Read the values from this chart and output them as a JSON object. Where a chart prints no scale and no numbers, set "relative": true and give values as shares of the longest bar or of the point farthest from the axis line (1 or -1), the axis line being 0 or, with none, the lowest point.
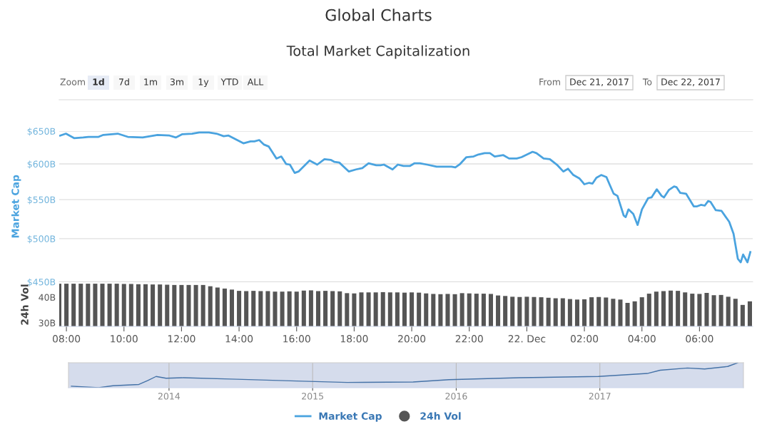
{
  "chart_data": [
    {
      "type": "line",
      "title": "Global Charts",
      "subtitle": "Total Market Capitalization",
      "annotations": [
        "Zoom",
        "1d",
        "7d",
        "1m",
        "3m",
        "1y",
        "YTD",
        "ALL",
        "From",
        "Dec 21, 2017",
        "To",
        "Dec 22, 2017"
      ],
      "ylabel": "Market Cap",
      "log": "y",
      "ylim": [
        450,
        650
      ],
      "yticks": [
        {
          "value": 450,
          "label": "$450B"
        },
        {
          "value": 500,
          "label": "$500B"
        },
        {
          "value": 550,
          "label": "$550B"
        },
        {
          "value": 600,
          "label": "$600B"
        },
        {
          "value": 650,
          "label": "$650B"
        }
      ],
      "xlim": [
        "2017-12-21T07:45",
        "2017-12-22T07:51"
      ],
      "tick_labels": "y",
      "grid": "y",
      "legend": "bottom",
      "x": [
        "2017-12-21T07:47",
        "2017-12-21T07:59",
        "2017-12-21T08:16",
        "2017-12-21T08:35",
        "2017-12-21T08:46",
        "2017-12-21T09:07",
        "2017-12-21T09:17",
        "2017-12-21T09:47",
        "2017-12-21T10:08",
        "2017-12-21T10:39",
        "2017-12-21T11:10",
        "2017-12-21T11:35",
        "2017-12-21T11:48",
        "2017-12-21T12:01",
        "2017-12-21T12:22",
        "2017-12-21T12:37",
        "2017-12-21T12:57",
        "2017-12-21T13:13",
        "2017-12-21T13:28",
        "2017-12-21T13:38",
        "2017-12-21T14:09",
        "2017-12-21T14:24",
        "2017-12-21T14:32",
        "2017-12-21T14:42",
        "2017-12-21T14:52",
        "2017-12-21T15:02",
        "2017-12-21T15:18",
        "2017-12-21T15:28",
        "2017-12-21T15:38",
        "2017-12-21T15:46",
        "2017-12-21T15:56",
        "2017-12-21T16:04",
        "2017-12-21T16:27",
        "2017-12-21T16:43",
        "2017-12-21T16:58",
        "2017-12-21T17:11",
        "2017-12-21T17:19",
        "2017-12-21T17:29",
        "2017-12-21T17:49",
        "2017-12-21T18:04",
        "2017-12-21T18:17",
        "2017-12-21T18:30",
        "2017-12-21T18:46",
        "2017-12-21T18:55",
        "2017-12-21T19:02",
        "2017-12-21T19:20",
        "2017-12-21T19:31",
        "2017-12-21T19:43",
        "2017-12-21T19:56",
        "2017-12-21T20:06",
        "2017-12-21T20:17",
        "2017-12-21T20:32",
        "2017-12-21T20:52",
        "2017-12-21T21:23",
        "2017-12-21T21:31",
        "2017-12-21T21:41",
        "2017-12-21T21:54",
        "2017-12-21T22:09",
        "2017-12-21T22:19",
        "2017-12-21T22:32",
        "2017-12-21T22:43",
        "2017-12-21T22:53",
        "2017-12-21T23:11",
        "2017-12-21T23:23",
        "2017-12-21T23:39",
        "2017-12-21T23:49",
        "2017-12-22T00:12",
        "2017-12-22T00:20",
        "2017-12-22T00:35",
        "2017-12-22T00:48",
        "2017-12-22T01:04",
        "2017-12-22T01:16",
        "2017-12-22T01:26",
        "2017-12-22T01:37",
        "2017-12-22T01:50",
        "2017-12-22T02:00",
        "2017-12-22T02:10",
        "2017-12-22T02:17",
        "2017-12-22T02:25",
        "2017-12-22T02:35",
        "2017-12-22T02:46",
        "2017-12-22T02:53",
        "2017-12-22T03:01",
        "2017-12-22T03:09",
        "2017-12-22T03:22",
        "2017-12-22T03:26",
        "2017-12-22T03:32",
        "2017-12-22T03:42",
        "2017-12-22T03:51",
        "2017-12-22T04:00",
        "2017-12-22T04:13",
        "2017-12-22T04:20",
        "2017-12-22T04:31",
        "2017-12-22T04:41",
        "2017-12-22T04:46",
        "2017-12-22T04:56",
        "2017-12-22T05:07",
        "2017-12-22T05:12",
        "2017-12-22T05:20",
        "2017-12-22T05:32",
        "2017-12-22T05:48",
        "2017-12-22T05:55",
        "2017-12-22T06:03",
        "2017-12-22T06:11",
        "2017-12-22T06:18",
        "2017-12-22T06:23",
        "2017-12-22T06:34",
        "2017-12-22T06:46",
        "2017-12-22T07:02",
        "2017-12-22T07:11",
        "2017-12-22T07:20",
        "2017-12-22T07:26",
        "2017-12-22T07:31",
        "2017-12-22T07:40",
        "2017-12-22T07:46"
      ],
      "series": [
        {
          "name": "Market Cap",
          "color": "#4aa3df",
          "values": [
            643,
            646,
            639,
            640,
            641,
            641,
            644,
            646,
            641,
            640,
            644,
            643,
            640,
            645,
            646,
            648,
            648,
            646,
            642,
            643,
            631,
            634,
            634,
            636,
            629,
            626,
            608,
            611,
            600,
            599,
            587,
            589,
            605,
            599,
            607,
            606,
            603,
            602,
            589,
            592,
            594,
            601,
            598,
            598,
            599,
            592,
            599,
            597,
            597,
            601,
            601,
            599,
            596,
            596,
            595,
            600,
            610,
            611,
            614,
            616,
            616,
            611,
            613,
            608,
            608,
            610,
            618,
            616,
            608,
            607,
            598,
            589,
            593,
            584,
            579,
            571,
            573,
            572,
            580,
            584,
            581,
            570,
            558,
            555,
            529,
            527,
            537,
            531,
            517,
            537,
            552,
            553,
            564,
            555,
            553,
            563,
            568,
            567,
            559,
            558,
            541,
            541,
            543,
            542,
            548,
            547,
            536,
            535,
            521,
            506,
            476,
            472,
            481,
            472,
            484
          ]
        }
      ]
    },
    {
      "type": "bar",
      "ylabel": "24h Vol",
      "ylim": [
        28.6,
        45.6
      ],
      "yticks": [
        {
          "value": 30,
          "label": "30B"
        },
        {
          "value": 40,
          "label": "40B"
        }
      ],
      "xlim": [
        "2017-12-21T07:45",
        "2017-12-22T07:51"
      ],
      "xticks": [
        {
          "value": "2017-12-21T08:00",
          "label": "08:00"
        },
        {
          "value": "2017-12-21T10:00",
          "label": "10:00"
        },
        {
          "value": "2017-12-21T12:00",
          "label": "12:00"
        },
        {
          "value": "2017-12-21T14:00",
          "label": "14:00"
        },
        {
          "value": "2017-12-21T16:00",
          "label": "16:00"
        },
        {
          "value": "2017-12-21T18:00",
          "label": "18:00"
        },
        {
          "value": "2017-12-21T20:00",
          "label": "20:00"
        },
        {
          "value": "2017-12-21T22:00",
          "label": "22:00"
        },
        {
          "value": "2017-12-22T00:00",
          "label": "22. Dec"
        },
        {
          "value": "2017-12-22T02:00",
          "label": "02:00"
        },
        {
          "value": "2017-12-22T04:00",
          "label": "04:00"
        },
        {
          "value": "2017-12-22T06:00",
          "label": "06:00"
        }
      ],
      "legend": "bottom",
      "x": [
        "2017-12-21T07:45",
        "2017-12-21T08:00",
        "2017-12-21T08:15",
        "2017-12-21T08:30",
        "2017-12-21T08:45",
        "2017-12-21T09:00",
        "2017-12-21T09:15",
        "2017-12-21T09:30",
        "2017-12-21T09:45",
        "2017-12-21T10:00",
        "2017-12-21T10:15",
        "2017-12-21T10:30",
        "2017-12-21T10:45",
        "2017-12-21T11:00",
        "2017-12-21T11:15",
        "2017-12-21T11:30",
        "2017-12-21T11:45",
        "2017-12-21T12:00",
        "2017-12-21T12:15",
        "2017-12-21T12:30",
        "2017-12-21T12:45",
        "2017-12-21T13:00",
        "2017-12-21T13:15",
        "2017-12-21T13:30",
        "2017-12-21T13:45",
        "2017-12-21T14:00",
        "2017-12-21T14:15",
        "2017-12-21T14:30",
        "2017-12-21T14:45",
        "2017-12-21T15:00",
        "2017-12-21T15:15",
        "2017-12-21T15:30",
        "2017-12-21T15:45",
        "2017-12-21T16:00",
        "2017-12-21T16:15",
        "2017-12-21T16:30",
        "2017-12-21T16:45",
        "2017-12-21T17:00",
        "2017-12-21T17:15",
        "2017-12-21T17:30",
        "2017-12-21T17:45",
        "2017-12-21T18:00",
        "2017-12-21T18:15",
        "2017-12-21T18:30",
        "2017-12-21T18:45",
        "2017-12-21T19:00",
        "2017-12-21T19:15",
        "2017-12-21T19:30",
        "2017-12-21T19:45",
        "2017-12-21T20:00",
        "2017-12-21T20:15",
        "2017-12-21T20:30",
        "2017-12-21T20:45",
        "2017-12-21T21:00",
        "2017-12-21T21:15",
        "2017-12-21T21:30",
        "2017-12-21T21:45",
        "2017-12-21T22:00",
        "2017-12-21T22:15",
        "2017-12-21T22:30",
        "2017-12-21T22:45",
        "2017-12-21T23:00",
        "2017-12-21T23:15",
        "2017-12-21T23:30",
        "2017-12-21T23:45",
        "2017-12-22T00:00",
        "2017-12-22T00:15",
        "2017-12-22T00:30",
        "2017-12-22T00:45",
        "2017-12-22T01:00",
        "2017-12-22T01:15",
        "2017-12-22T01:30",
        "2017-12-22T01:45",
        "2017-12-22T02:00",
        "2017-12-22T02:15",
        "2017-12-22T02:30",
        "2017-12-22T02:45",
        "2017-12-22T03:00",
        "2017-12-22T03:15",
        "2017-12-22T03:30",
        "2017-12-22T03:45",
        "2017-12-22T04:00",
        "2017-12-22T04:15",
        "2017-12-22T04:30",
        "2017-12-22T04:45",
        "2017-12-22T05:00",
        "2017-12-22T05:15",
        "2017-12-22T05:30",
        "2017-12-22T05:45",
        "2017-12-22T06:00",
        "2017-12-22T06:15",
        "2017-12-22T06:30",
        "2017-12-22T06:45",
        "2017-12-22T07:00",
        "2017-12-22T07:15",
        "2017-12-22T07:30",
        "2017-12-22T07:45"
      ],
      "series": [
        {
          "name": "24h Vol",
          "color": "#555555",
          "values": [
            45.3,
            45.3,
            45.3,
            45.3,
            45.3,
            45.3,
            45.3,
            45.3,
            45.3,
            45.2,
            45.2,
            45.1,
            45.1,
            45.0,
            45.0,
            44.9,
            44.8,
            44.8,
            44.8,
            44.8,
            44.8,
            44.3,
            43.8,
            43.4,
            43.0,
            42.5,
            42.4,
            42.5,
            42.4,
            42.4,
            42.2,
            42.2,
            42.3,
            42.2,
            42.6,
            42.7,
            42.4,
            42.5,
            42.4,
            42.3,
            41.6,
            41.5,
            41.9,
            41.9,
            41.9,
            42.0,
            41.9,
            41.9,
            41.8,
            41.9,
            41.8,
            41.5,
            41.3,
            41.2,
            41.3,
            41.2,
            41.6,
            41.5,
            41.4,
            41.4,
            41.3,
            40.7,
            40.5,
            40.2,
            40.1,
            40.2,
            40.1,
            40.0,
            39.8,
            39.6,
            39.6,
            39.3,
            39.1,
            39.2,
            40.0,
            40.1,
            39.9,
            39.4,
            39.1,
            37.8,
            38.4,
            40.0,
            41.4,
            42.2,
            42.4,
            42.6,
            42.5,
            41.9,
            41.4,
            41.3,
            41.7,
            40.8,
            40.9,
            40.2,
            39.4,
            37.0,
            38.4
          ]
        }
      ]
    },
    {
      "type": "line",
      "relative": true,
      "tick_labels": "x",
      "grid": "x",
      "xlim": [
        2013.3,
        2018.0
      ],
      "xticks": [
        2014,
        2015,
        2016,
        2017
      ],
      "x": [
        2013.32,
        2013.51,
        2013.61,
        2013.79,
        2013.85,
        2013.91,
        2013.98,
        2014.1,
        2014.47,
        2014.93,
        2015.24,
        2015.7,
        2015.95,
        2016.44,
        2016.99,
        2017.33,
        2017.42,
        2017.61,
        2017.73,
        2017.89,
        2017.96
      ],
      "series": [
        {
          "color": "#4572a7",
          "values": [
            0.06,
            0,
            0.08,
            0.13,
            0.28,
            0.45,
            0.38,
            0.4,
            0.34,
            0.26,
            0.21,
            0.23,
            0.32,
            0.4,
            0.45,
            0.57,
            0.7,
            0.79,
            0.75,
            0.85,
            1.0
          ]
        }
      ]
    }
  ]
}
